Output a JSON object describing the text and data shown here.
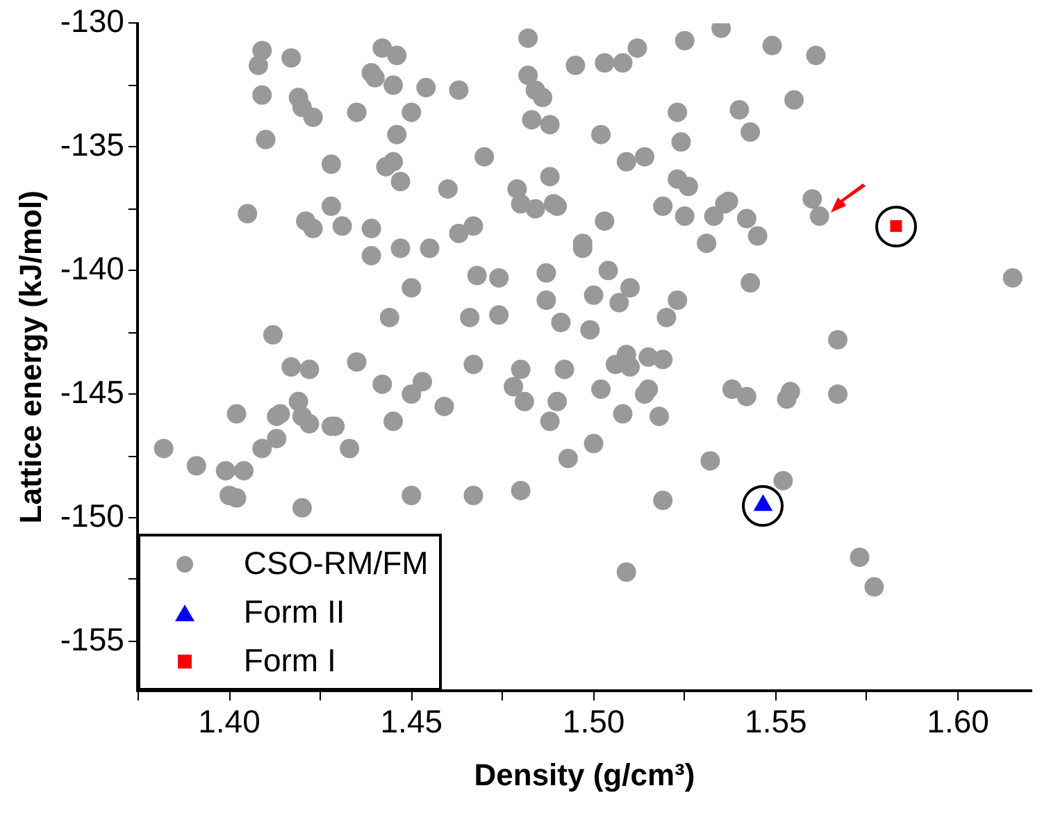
{
  "chart_data": {
    "type": "scatter",
    "xlabel": "Density (g/cm³)",
    "ylabel": "Lattice energy (kJ/mol)",
    "xlim": [
      1.375,
      1.62
    ],
    "ylim": [
      -157,
      -130
    ],
    "xticks": [
      {
        "value": 1.375,
        "label": null
      },
      {
        "value": 1.4,
        "label": "1.40"
      },
      {
        "value": 1.425,
        "label": null
      },
      {
        "value": 1.45,
        "label": "1.45"
      },
      {
        "value": 1.475,
        "label": null
      },
      {
        "value": 1.5,
        "label": "1.50"
      },
      {
        "value": 1.525,
        "label": null
      },
      {
        "value": 1.55,
        "label": "1.55"
      },
      {
        "value": 1.575,
        "label": null
      },
      {
        "value": 1.6,
        "label": "1.60"
      }
    ],
    "yticks": [
      -130,
      {
        "value": -132.5,
        "label": null
      },
      -135,
      {
        "value": -137.5,
        "label": null
      },
      -140,
      {
        "value": -142.5,
        "label": null
      },
      -145,
      {
        "value": -147.5,
        "label": null
      },
      -150,
      {
        "value": -152.5,
        "label": null
      },
      -155
    ],
    "grid": false,
    "legend": "bottom left",
    "series": [
      {
        "name": "CSO-RM/FM",
        "color": "#999999",
        "marker": "circle",
        "x": [
          1.409,
          1.408,
          1.417,
          1.442,
          1.446,
          1.439,
          1.44,
          1.445,
          1.454,
          1.463,
          1.409,
          1.419,
          1.42,
          1.423,
          1.435,
          1.45,
          1.446,
          1.41,
          1.47,
          1.428,
          1.445,
          1.443,
          1.447,
          1.46,
          1.405,
          1.428,
          1.421,
          1.423,
          1.431,
          1.439,
          1.467,
          1.463,
          1.439,
          1.447,
          1.455,
          1.468,
          1.474,
          1.45,
          1.444,
          1.466,
          1.474,
          1.412,
          1.417,
          1.422,
          1.435,
          1.442,
          1.45,
          1.453,
          1.467,
          1.459,
          1.402,
          1.419,
          1.413,
          1.414,
          1.42,
          1.422,
          1.428,
          1.429,
          1.445,
          1.413,
          1.409,
          1.433,
          1.382,
          1.391,
          1.399,
          1.404,
          1.4,
          1.402,
          1.42,
          1.45,
          1.467,
          1.482,
          1.495,
          1.503,
          1.508,
          1.512,
          1.525,
          1.535,
          1.549,
          1.561,
          1.482,
          1.484,
          1.486,
          1.555,
          1.483,
          1.488,
          1.523,
          1.54,
          1.502,
          1.524,
          1.543,
          1.509,
          1.514,
          1.488,
          1.523,
          1.526,
          1.479,
          1.48,
          1.484,
          1.489,
          1.49,
          1.519,
          1.525,
          1.533,
          1.537,
          1.536,
          1.542,
          1.545,
          1.531,
          1.503,
          1.56,
          1.562,
          1.497,
          1.497,
          1.487,
          1.504,
          1.543,
          1.487,
          1.5,
          1.51,
          1.507,
          1.523,
          1.52,
          1.491,
          1.499,
          1.567,
          1.509,
          1.506,
          1.51,
          1.515,
          1.519,
          1.48,
          1.492,
          1.478,
          1.481,
          1.49,
          1.502,
          1.515,
          1.514,
          1.538,
          1.542,
          1.554,
          1.553,
          1.567,
          1.488,
          1.508,
          1.518,
          1.5,
          1.493,
          1.532,
          1.48,
          1.519,
          1.552,
          1.573,
          1.577,
          1.509,
          1.615
        ],
        "values": [
          -131.1,
          -131.7,
          -131.4,
          -131.0,
          -131.3,
          -132.0,
          -132.2,
          -132.5,
          -132.6,
          -132.7,
          -132.9,
          -133.0,
          -133.4,
          -133.8,
          -133.6,
          -133.6,
          -134.5,
          -134.7,
          -135.4,
          -135.7,
          -135.6,
          -135.8,
          -136.4,
          -136.7,
          -137.7,
          -137.4,
          -138.0,
          -138.3,
          -138.2,
          -138.3,
          -138.2,
          -138.5,
          -139.4,
          -139.1,
          -139.1,
          -140.2,
          -140.3,
          -140.7,
          -141.9,
          -141.9,
          -141.8,
          -142.6,
          -143.9,
          -144.0,
          -143.7,
          -144.6,
          -145.0,
          -144.5,
          -143.8,
          -145.5,
          -145.8,
          -145.3,
          -145.9,
          -145.8,
          -145.9,
          -146.2,
          -146.3,
          -146.3,
          -146.1,
          -146.8,
          -147.2,
          -147.2,
          -147.2,
          -147.9,
          -148.1,
          -148.1,
          -149.1,
          -149.2,
          -149.6,
          -149.1,
          -149.1,
          -130.6,
          -131.7,
          -131.6,
          -131.6,
          -131.0,
          -130.7,
          -130.2,
          -130.9,
          -131.3,
          -132.1,
          -132.7,
          -133.0,
          -133.1,
          -133.9,
          -134.1,
          -133.6,
          -133.5,
          -134.5,
          -134.8,
          -134.4,
          -135.6,
          -135.4,
          -136.2,
          -136.3,
          -136.6,
          -136.7,
          -137.3,
          -137.5,
          -137.3,
          -137.4,
          -137.4,
          -137.8,
          -137.8,
          -137.2,
          -137.3,
          -137.9,
          -138.6,
          -138.9,
          -138.0,
          -137.1,
          -137.8,
          -138.9,
          -139.1,
          -140.1,
          -140.0,
          -140.5,
          -141.2,
          -141.0,
          -140.7,
          -141.3,
          -141.2,
          -141.9,
          -142.1,
          -142.4,
          -142.8,
          -143.4,
          -143.8,
          -143.9,
          -143.5,
          -143.6,
          -144.0,
          -144.0,
          -144.7,
          -145.3,
          -145.3,
          -144.8,
          -144.8,
          -145.0,
          -144.8,
          -145.1,
          -144.9,
          -145.2,
          -145.0,
          -146.1,
          -145.8,
          -145.9,
          -147.0,
          -147.6,
          -147.7,
          -148.9,
          -149.3,
          -148.5,
          -151.6,
          -152.8,
          -152.2,
          -140.3
        ]
      },
      {
        "name": "Form II",
        "color": "#0000ff",
        "marker": "triangle",
        "x": [
          1.5465
        ],
        "values": [
          -149.5
        ]
      },
      {
        "name": "Form I",
        "color": "#ff0000",
        "marker": "square",
        "x": [
          1.583
        ],
        "values": [
          -138.2
        ]
      }
    ]
  }
}
